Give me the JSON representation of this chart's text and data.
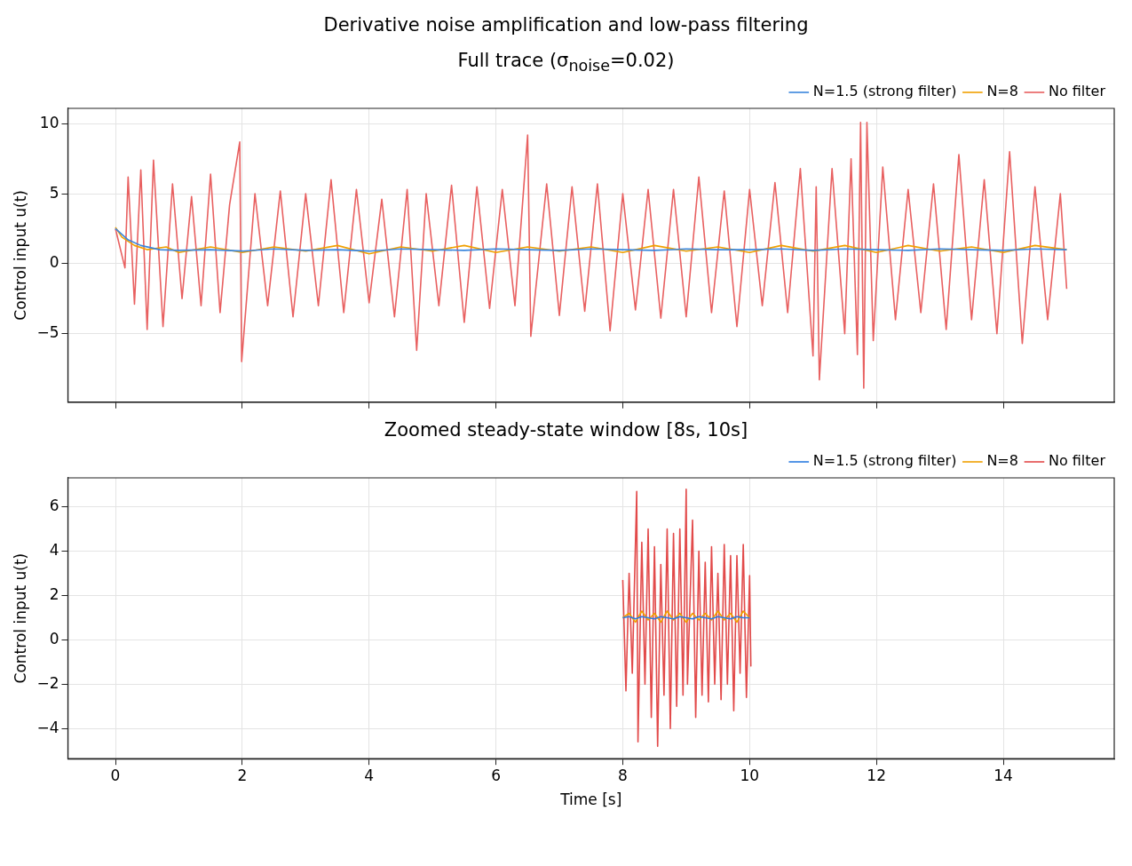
{
  "chart_data": [
    {
      "type": "line",
      "title": "Derivative noise amplification and low-pass filtering",
      "subtitle": "Full trace (σ$_{noise}$=0.02)",
      "ylabel": "Control input u(t)",
      "xlim": [
        -0.75,
        15.75
      ],
      "xticks": [
        0,
        2,
        4,
        6,
        8,
        10,
        12,
        14
      ],
      "ylim": [
        -9.9,
        11.1
      ],
      "yticks": [
        {
          "value": -5,
          "label": "−5"
        },
        0,
        5,
        10
      ],
      "grid": true,
      "legend": "top right",
      "tick_labels": "y",
      "marker": "none",
      "series": [
        {
          "name": "No filter",
          "color": "#e86060",
          "x": [
            0,
            0.15,
            0.2,
            0.3,
            0.4,
            0.5,
            0.6,
            0.75,
            0.9,
            1.05,
            1.2,
            1.35,
            1.5,
            1.65,
            1.8,
            1.96,
            1.99,
            2.2,
            2.4,
            2.6,
            2.8,
            3.0,
            3.2,
            3.4,
            3.6,
            3.8,
            4.0,
            4.2,
            4.4,
            4.6,
            4.75,
            4.9,
            5.1,
            5.3,
            5.5,
            5.7,
            5.9,
            6.1,
            6.3,
            6.5,
            6.55,
            6.8,
            7.0,
            7.2,
            7.4,
            7.6,
            7.8,
            8.0,
            8.2,
            8.4,
            8.6,
            8.8,
            9.0,
            9.2,
            9.4,
            9.6,
            9.8,
            10.0,
            10.2,
            10.4,
            10.6,
            10.8,
            11.0,
            11.05,
            11.1,
            11.3,
            11.5,
            11.6,
            11.7,
            11.75,
            11.8,
            11.85,
            11.95,
            12.1,
            12.3,
            12.5,
            12.7,
            12.9,
            13.1,
            13.3,
            13.5,
            13.7,
            13.9,
            14.1,
            14.3,
            14.5,
            14.7,
            14.9,
            15.0
          ],
          "values": [
            2.5,
            -0.3,
            6.2,
            -2.9,
            6.7,
            -4.7,
            7.4,
            -4.5,
            5.7,
            -2.5,
            4.8,
            -3.0,
            6.4,
            -3.5,
            4.2,
            8.7,
            -7.0,
            5.0,
            -3.0,
            5.2,
            -3.8,
            5.0,
            -3.0,
            6.0,
            -3.5,
            5.3,
            -2.8,
            4.6,
            -3.8,
            5.3,
            -6.2,
            5.0,
            -3.0,
            5.6,
            -4.2,
            5.5,
            -3.2,
            5.3,
            -3.0,
            9.2,
            -5.2,
            5.7,
            -3.7,
            5.5,
            -3.4,
            5.7,
            -4.8,
            5.0,
            -3.3,
            5.3,
            -3.9,
            5.3,
            -3.8,
            6.2,
            -3.5,
            5.2,
            -4.5,
            5.3,
            -3.0,
            5.8,
            -3.5,
            6.8,
            -6.6,
            5.5,
            -8.3,
            6.8,
            -5.0,
            7.5,
            -6.5,
            10.1,
            -8.9,
            10.1,
            -5.5,
            6.9,
            -4.0,
            5.3,
            -3.5,
            5.7,
            -4.7,
            7.8,
            -4.0,
            6.0,
            -5.0,
            8.0,
            -5.7,
            5.5,
            -4.0,
            5.0,
            -1.8
          ]
        },
        {
          "name": "N=8",
          "color": "#f0a000",
          "x": [
            0,
            0.1,
            0.3,
            0.5,
            0.8,
            1,
            1.5,
            2,
            2.5,
            3,
            3.5,
            4,
            4.5,
            5,
            5.5,
            6,
            6.5,
            7,
            7.5,
            8,
            8.5,
            9,
            9.5,
            10,
            10.5,
            11,
            11.5,
            12,
            12.5,
            13,
            13.5,
            14,
            14.5,
            15
          ],
          "values": [
            2.6,
            1.9,
            1.3,
            1.0,
            1.2,
            0.8,
            1.2,
            0.8,
            1.2,
            0.9,
            1.3,
            0.7,
            1.2,
            0.9,
            1.3,
            0.8,
            1.2,
            0.9,
            1.2,
            0.8,
            1.3,
            0.9,
            1.2,
            0.8,
            1.3,
            0.9,
            1.3,
            0.8,
            1.3,
            0.9,
            1.2,
            0.8,
            1.3,
            1.0
          ]
        },
        {
          "name": "N=1.5 (strong filter)",
          "color": "#3a86dc",
          "x": [
            0,
            0.2,
            0.4,
            0.7,
            1,
            1.5,
            2,
            2.5,
            3,
            3.5,
            4,
            4.5,
            5,
            5.5,
            6,
            6.5,
            7,
            7.5,
            8,
            8.5,
            9,
            9.5,
            10,
            10.5,
            11,
            11.5,
            12,
            12.5,
            13,
            13.5,
            14,
            14.5,
            15
          ],
          "values": [
            2.5,
            1.7,
            1.3,
            1.0,
            0.95,
            1.0,
            0.9,
            1.05,
            0.95,
            1.0,
            0.9,
            1.05,
            1.0,
            0.95,
            1.05,
            1.0,
            0.95,
            1.05,
            1.0,
            0.95,
            1.05,
            1.0,
            1.0,
            1.05,
            0.95,
            1.05,
            1.0,
            0.95,
            1.05,
            1.0,
            0.95,
            1.05,
            1.0
          ]
        }
      ]
    },
    {
      "type": "line",
      "title": "Zoomed steady-state window [8s, 10s]",
      "xlabel": "Time [s]",
      "ylabel": "Control input u(t)",
      "xlim": [
        -0.75,
        15.75
      ],
      "xticks": [
        0,
        2,
        4,
        6,
        8,
        10,
        12,
        14
      ],
      "ylim": [
        -5.36,
        7.31
      ],
      "yticks": [
        {
          "value": -4,
          "label": "−4"
        },
        {
          "value": -2,
          "label": "−2"
        },
        0,
        2,
        4,
        6
      ],
      "grid": true,
      "legend": "top right",
      "marker": "none",
      "series": [
        {
          "name": "No filter",
          "color": "#e24a4a",
          "x": [
            8.0,
            8.05,
            8.1,
            8.15,
            8.22,
            8.24,
            8.3,
            8.35,
            8.4,
            8.45,
            8.5,
            8.55,
            8.6,
            8.65,
            8.7,
            8.75,
            8.8,
            8.85,
            8.9,
            8.95,
            9.0,
            9.02,
            9.1,
            9.15,
            9.2,
            9.25,
            9.3,
            9.35,
            9.4,
            9.45,
            9.5,
            9.55,
            9.6,
            9.65,
            9.7,
            9.75,
            9.8,
            9.85,
            9.9,
            9.95,
            10.0,
            10.02
          ],
          "values": [
            2.7,
            -2.3,
            3.0,
            -1.5,
            6.7,
            -4.6,
            4.4,
            -2.0,
            5.0,
            -3.5,
            4.2,
            -4.8,
            3.4,
            -2.5,
            5.0,
            -4.0,
            4.8,
            -3.0,
            5.0,
            -2.5,
            6.8,
            -2.0,
            5.4,
            -3.5,
            4.0,
            -2.5,
            3.5,
            -2.8,
            4.2,
            -2.0,
            3.0,
            -2.7,
            4.3,
            -2.0,
            3.8,
            -3.2,
            3.8,
            -1.5,
            4.3,
            -2.6,
            2.9,
            -1.2
          ]
        },
        {
          "name": "N=8",
          "color": "#f0a000",
          "x": [
            8.0,
            8.1,
            8.2,
            8.3,
            8.4,
            8.5,
            8.6,
            8.7,
            8.8,
            8.9,
            9.0,
            9.1,
            9.2,
            9.3,
            9.4,
            9.5,
            9.6,
            9.7,
            9.8,
            9.9,
            10.0
          ],
          "values": [
            1.0,
            1.2,
            0.8,
            1.3,
            0.9,
            1.2,
            0.8,
            1.3,
            0.9,
            1.2,
            0.8,
            1.2,
            0.9,
            1.2,
            0.9,
            1.3,
            0.9,
            1.2,
            0.8,
            1.3,
            1.0
          ]
        },
        {
          "name": "N=1.5 (strong filter)",
          "color": "#2a7be0",
          "x": [
            8.0,
            8.1,
            8.2,
            8.3,
            8.4,
            8.5,
            8.6,
            8.7,
            8.8,
            8.9,
            9.0,
            9.1,
            9.2,
            9.3,
            9.4,
            9.5,
            9.6,
            9.7,
            9.8,
            9.9,
            10.0
          ],
          "values": [
            1.0,
            1.05,
            0.95,
            1.05,
            1.0,
            0.95,
            1.05,
            1.0,
            0.95,
            1.05,
            1.0,
            0.95,
            1.05,
            1.0,
            0.95,
            1.05,
            1.0,
            0.95,
            1.05,
            1.0,
            1.0
          ]
        }
      ]
    }
  ]
}
